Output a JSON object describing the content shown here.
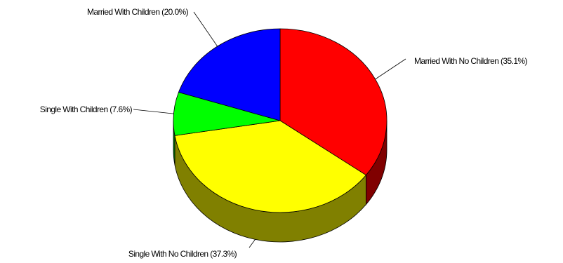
{
  "chart_data": {
    "type": "pie",
    "style": "3d",
    "slices": [
      {
        "label": "Married With No Children (35.1%)",
        "value": 35.1,
        "color": "#ff0000",
        "side_color": "#800000"
      },
      {
        "label": "Single With No Children (37.3%)",
        "value": 37.3,
        "color": "#ffff00",
        "side_color": "#808000"
      },
      {
        "label": "Single With Children (7.6%)",
        "value": 7.6,
        "color": "#00ff00",
        "side_color": "#008000"
      },
      {
        "label": "Married With Children (20.0%)",
        "value": 20.0,
        "color": "#0000ff",
        "side_color": "#000080"
      }
    ],
    "start_position": "12 o'clock",
    "direction": "clockwise",
    "legend": "none"
  }
}
